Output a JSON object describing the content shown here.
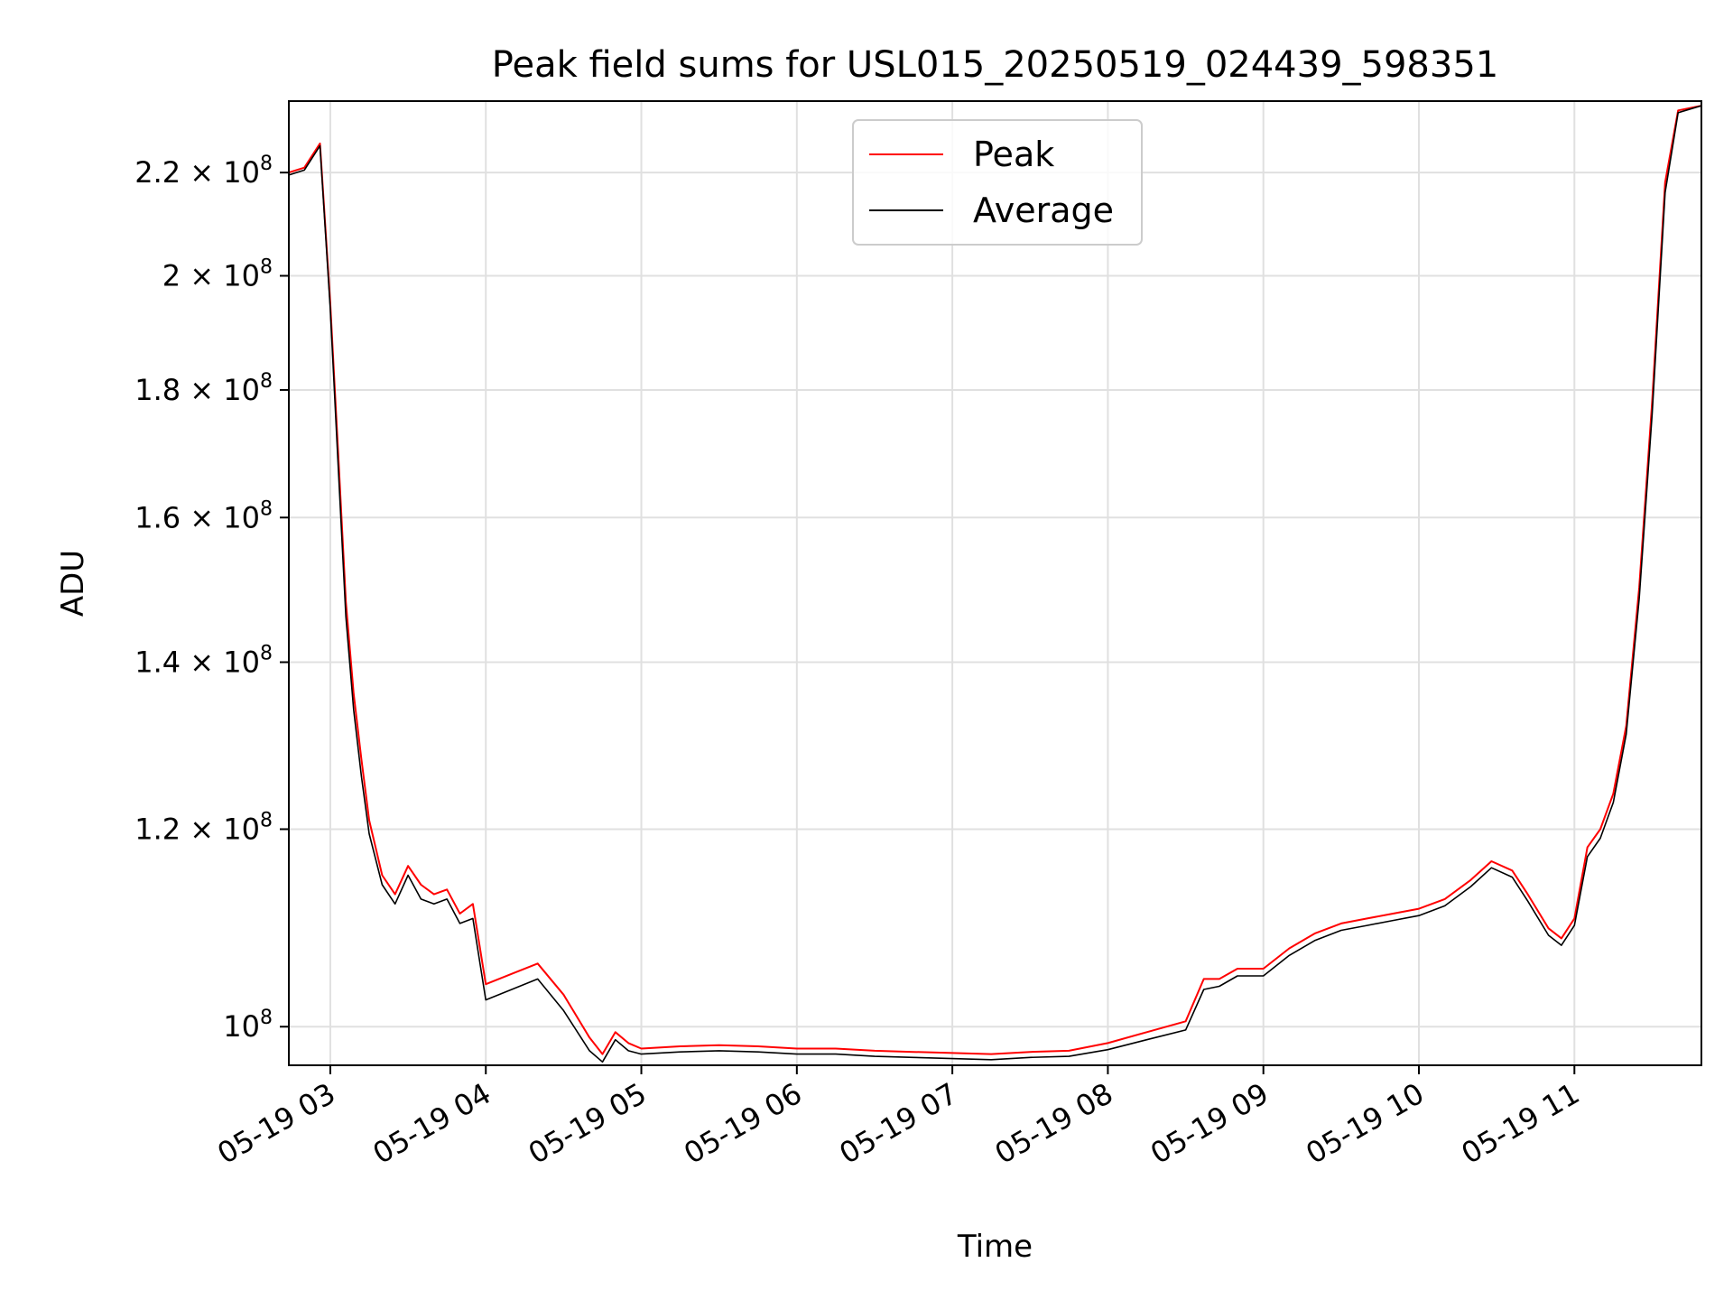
{
  "chart_data": {
    "type": "line",
    "title": "Peak field sums for USL015_20250519_024439_598351",
    "xlabel": "Time",
    "ylabel": "ADU",
    "y_scale": "log",
    "grid": true,
    "legend_position": "top-center",
    "x_range": [
      "2025-05-19 02:44",
      "2025-05-19 11:49"
    ],
    "y_range": [
      96500000,
      235000000
    ],
    "x_tick_labels": [
      "05-19 03",
      "05-19 04",
      "05-19 05",
      "05-19 06",
      "05-19 07",
      "05-19 08",
      "05-19 09",
      "05-19 10",
      "05-19 11"
    ],
    "y_tick_labels": [
      {
        "value": 100000000,
        "mantissa": "",
        "base": "10",
        "exp": "8"
      },
      {
        "value": 120000000,
        "mantissa": "1.2",
        "base": "10",
        "exp": "8"
      },
      {
        "value": 140000000,
        "mantissa": "1.4",
        "base": "10",
        "exp": "8"
      },
      {
        "value": 160000000,
        "mantissa": "1.6",
        "base": "10",
        "exp": "8"
      },
      {
        "value": 180000000,
        "mantissa": "1.8",
        "base": "10",
        "exp": "8"
      },
      {
        "value": 200000000,
        "mantissa": "2",
        "base": "10",
        "exp": "8"
      },
      {
        "value": 220000000,
        "mantissa": "2.2",
        "base": "10",
        "exp": "8"
      }
    ],
    "x": [
      "2025-05-19 02:44",
      "2025-05-19 02:50",
      "2025-05-19 02:56",
      "2025-05-19 03:00",
      "2025-05-19 03:03",
      "2025-05-19 03:06",
      "2025-05-19 03:09",
      "2025-05-19 03:12",
      "2025-05-19 03:15",
      "2025-05-19 03:20",
      "2025-05-19 03:25",
      "2025-05-19 03:30",
      "2025-05-19 03:35",
      "2025-05-19 03:40",
      "2025-05-19 03:45",
      "2025-05-19 03:50",
      "2025-05-19 03:55",
      "2025-05-19 04:00",
      "2025-05-19 04:10",
      "2025-05-19 04:20",
      "2025-05-19 04:30",
      "2025-05-19 04:40",
      "2025-05-19 04:45",
      "2025-05-19 04:50",
      "2025-05-19 04:55",
      "2025-05-19 05:00",
      "2025-05-19 05:15",
      "2025-05-19 05:30",
      "2025-05-19 05:45",
      "2025-05-19 06:00",
      "2025-05-19 06:15",
      "2025-05-19 06:30",
      "2025-05-19 06:45",
      "2025-05-19 07:00",
      "2025-05-19 07:15",
      "2025-05-19 07:30",
      "2025-05-19 07:45",
      "2025-05-19 08:00",
      "2025-05-19 08:15",
      "2025-05-19 08:30",
      "2025-05-19 08:37",
      "2025-05-19 08:43",
      "2025-05-19 08:50",
      "2025-05-19 09:00",
      "2025-05-19 09:10",
      "2025-05-19 09:20",
      "2025-05-19 09:30",
      "2025-05-19 09:40",
      "2025-05-19 09:50",
      "2025-05-19 10:00",
      "2025-05-19 10:10",
      "2025-05-19 10:20",
      "2025-05-19 10:28",
      "2025-05-19 10:36",
      "2025-05-19 10:42",
      "2025-05-19 10:50",
      "2025-05-19 10:55",
      "2025-05-19 11:00",
      "2025-05-19 11:05",
      "2025-05-19 11:10",
      "2025-05-19 11:15",
      "2025-05-19 11:20",
      "2025-05-19 11:25",
      "2025-05-19 11:30",
      "2025-05-19 11:35",
      "2025-05-19 11:40",
      "2025-05-19 11:49"
    ],
    "series": [
      {
        "name": "Peak",
        "color": "#ff0000",
        "values": [
          220000000,
          221000000,
          226000000,
          195000000,
          170000000,
          148000000,
          136000000,
          128000000,
          121000000,
          115000000,
          113000000,
          116000000,
          114000000,
          113000000,
          113500000,
          111000000,
          112000000,
          104000000,
          105000000,
          106000000,
          103000000,
          99000000,
          97500000,
          99500000,
          98500000,
          98000000,
          98200000,
          98300000,
          98200000,
          98000000,
          98000000,
          97800000,
          97700000,
          97600000,
          97500000,
          97700000,
          97800000,
          98500000,
          99500000,
          100500000,
          104500000,
          104500000,
          105500000,
          105500000,
          107500000,
          109000000,
          110000000,
          110500000,
          111000000,
          111500000,
          112500000,
          114500000,
          116500000,
          115500000,
          113000000,
          109500000,
          108500000,
          110500000,
          118000000,
          120000000,
          124000000,
          132000000,
          150000000,
          178000000,
          218000000,
          233000000,
          234000000
        ]
      },
      {
        "name": "Average",
        "color": "#000000",
        "values": [
          219500000,
          220500000,
          225500000,
          194000000,
          168000000,
          146000000,
          134000000,
          126000000,
          119500000,
          114000000,
          112000000,
          115000000,
          112500000,
          112000000,
          112500000,
          110000000,
          110500000,
          102500000,
          103500000,
          104500000,
          101500000,
          97800000,
          96800000,
          98800000,
          97800000,
          97500000,
          97700000,
          97800000,
          97700000,
          97500000,
          97500000,
          97300000,
          97200000,
          97100000,
          97000000,
          97200000,
          97300000,
          97900000,
          98800000,
          99700000,
          103500000,
          103800000,
          104800000,
          104800000,
          106800000,
          108300000,
          109300000,
          109800000,
          110300000,
          110800000,
          111800000,
          113800000,
          115800000,
          114800000,
          112300000,
          108800000,
          107800000,
          109800000,
          117000000,
          119000000,
          123000000,
          131000000,
          148500000,
          176000000,
          216000000,
          232500000,
          234000000
        ]
      }
    ]
  }
}
